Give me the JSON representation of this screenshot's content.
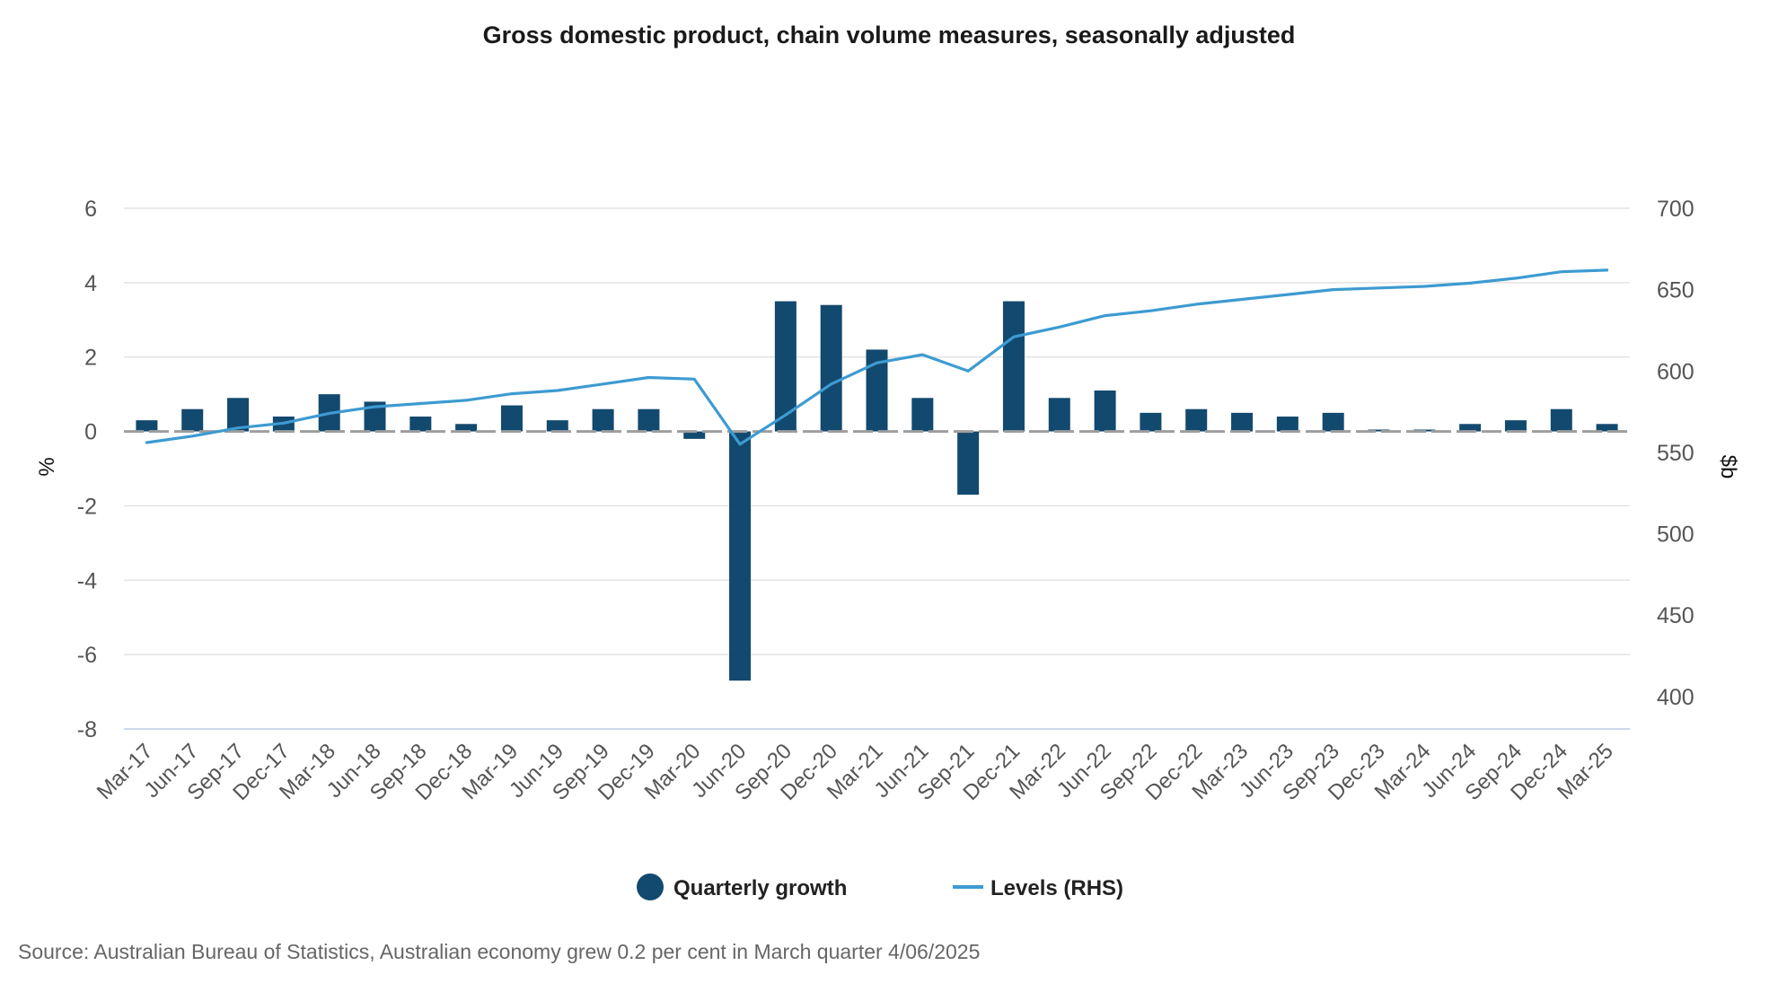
{
  "chart_data": {
    "type": "bar",
    "title": "Gross domestic product, chain volume measures, seasonally adjusted",
    "categories": [
      "Mar-17",
      "Jun-17",
      "Sep-17",
      "Dec-17",
      "Mar-18",
      "Jun-18",
      "Sep-18",
      "Dec-18",
      "Mar-19",
      "Jun-19",
      "Sep-19",
      "Dec-19",
      "Mar-20",
      "Jun-20",
      "Sep-20",
      "Dec-20",
      "Mar-21",
      "Jun-21",
      "Sep-21",
      "Dec-21",
      "Mar-22",
      "Jun-22",
      "Sep-22",
      "Dec-22",
      "Mar-23",
      "Jun-23",
      "Sep-23",
      "Dec-23",
      "Mar-24",
      "Jun-24",
      "Sep-24",
      "Dec-24",
      "Mar-25"
    ],
    "series": [
      {
        "name": "Quarterly growth",
        "type": "bar",
        "axis": "left",
        "color": "#12496f",
        "values": [
          0.3,
          0.6,
          0.9,
          0.4,
          1.0,
          0.8,
          0.4,
          0.2,
          0.7,
          0.3,
          0.6,
          0.6,
          -0.2,
          -6.7,
          3.5,
          3.4,
          2.2,
          0.9,
          -1.7,
          3.5,
          0.9,
          1.1,
          0.5,
          0.6,
          0.5,
          0.4,
          0.5,
          0.05,
          0.05,
          0.2,
          0.3,
          0.6,
          0.2
        ]
      },
      {
        "name": "Levels (RHS)",
        "type": "line",
        "axis": "right",
        "color": "#3d9bd1",
        "values": [
          556,
          560,
          565,
          568,
          574,
          578,
          580,
          582,
          586,
          588,
          592,
          596,
          595,
          555,
          573,
          592,
          605,
          610,
          600,
          621,
          627,
          634,
          637,
          641,
          644,
          647,
          650,
          651,
          652,
          654,
          657,
          661,
          662
        ]
      }
    ],
    "ylabel": "%",
    "ylim": [
      -8,
      6
    ],
    "yticks": [
      "6",
      "4",
      "2",
      "0",
      "-2",
      "-4",
      "-6",
      "-8"
    ],
    "y2label": "$b",
    "y2lim": [
      380,
      700
    ],
    "y2ticks": [
      "700",
      "650",
      "600",
      "550",
      "500",
      "450",
      "400"
    ],
    "grid": true,
    "legend": {
      "position": "bottom",
      "items": [
        "Quarterly growth",
        "Levels (RHS)"
      ]
    },
    "source": "Source: Australian Bureau of Statistics, Australian economy grew 0.2 per cent in March quarter 4/06/2025"
  }
}
